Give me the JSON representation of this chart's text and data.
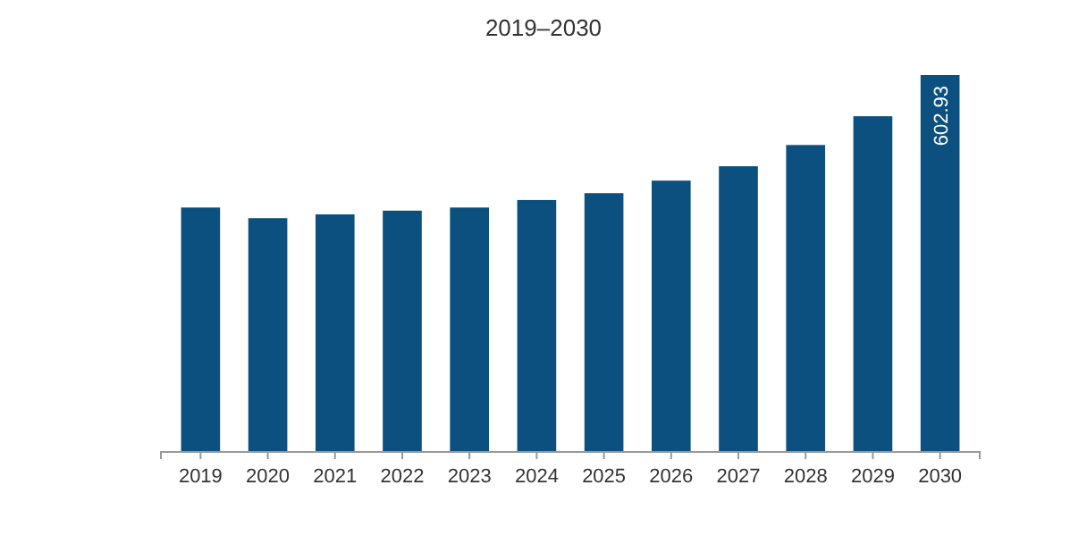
{
  "chart_data": {
    "type": "bar",
    "title": "2019–2030",
    "categories": [
      "2019",
      "2020",
      "2021",
      "2022",
      "2023",
      "2024",
      "2025",
      "2026",
      "2027",
      "2028",
      "2029",
      "2030"
    ],
    "values": [
      391,
      374,
      380,
      386,
      391,
      403,
      414,
      434,
      457,
      491,
      537,
      602.93
    ],
    "value_labels": [
      null,
      null,
      null,
      null,
      null,
      null,
      null,
      null,
      null,
      null,
      null,
      "602.93"
    ],
    "color": "#0b507f"
  }
}
